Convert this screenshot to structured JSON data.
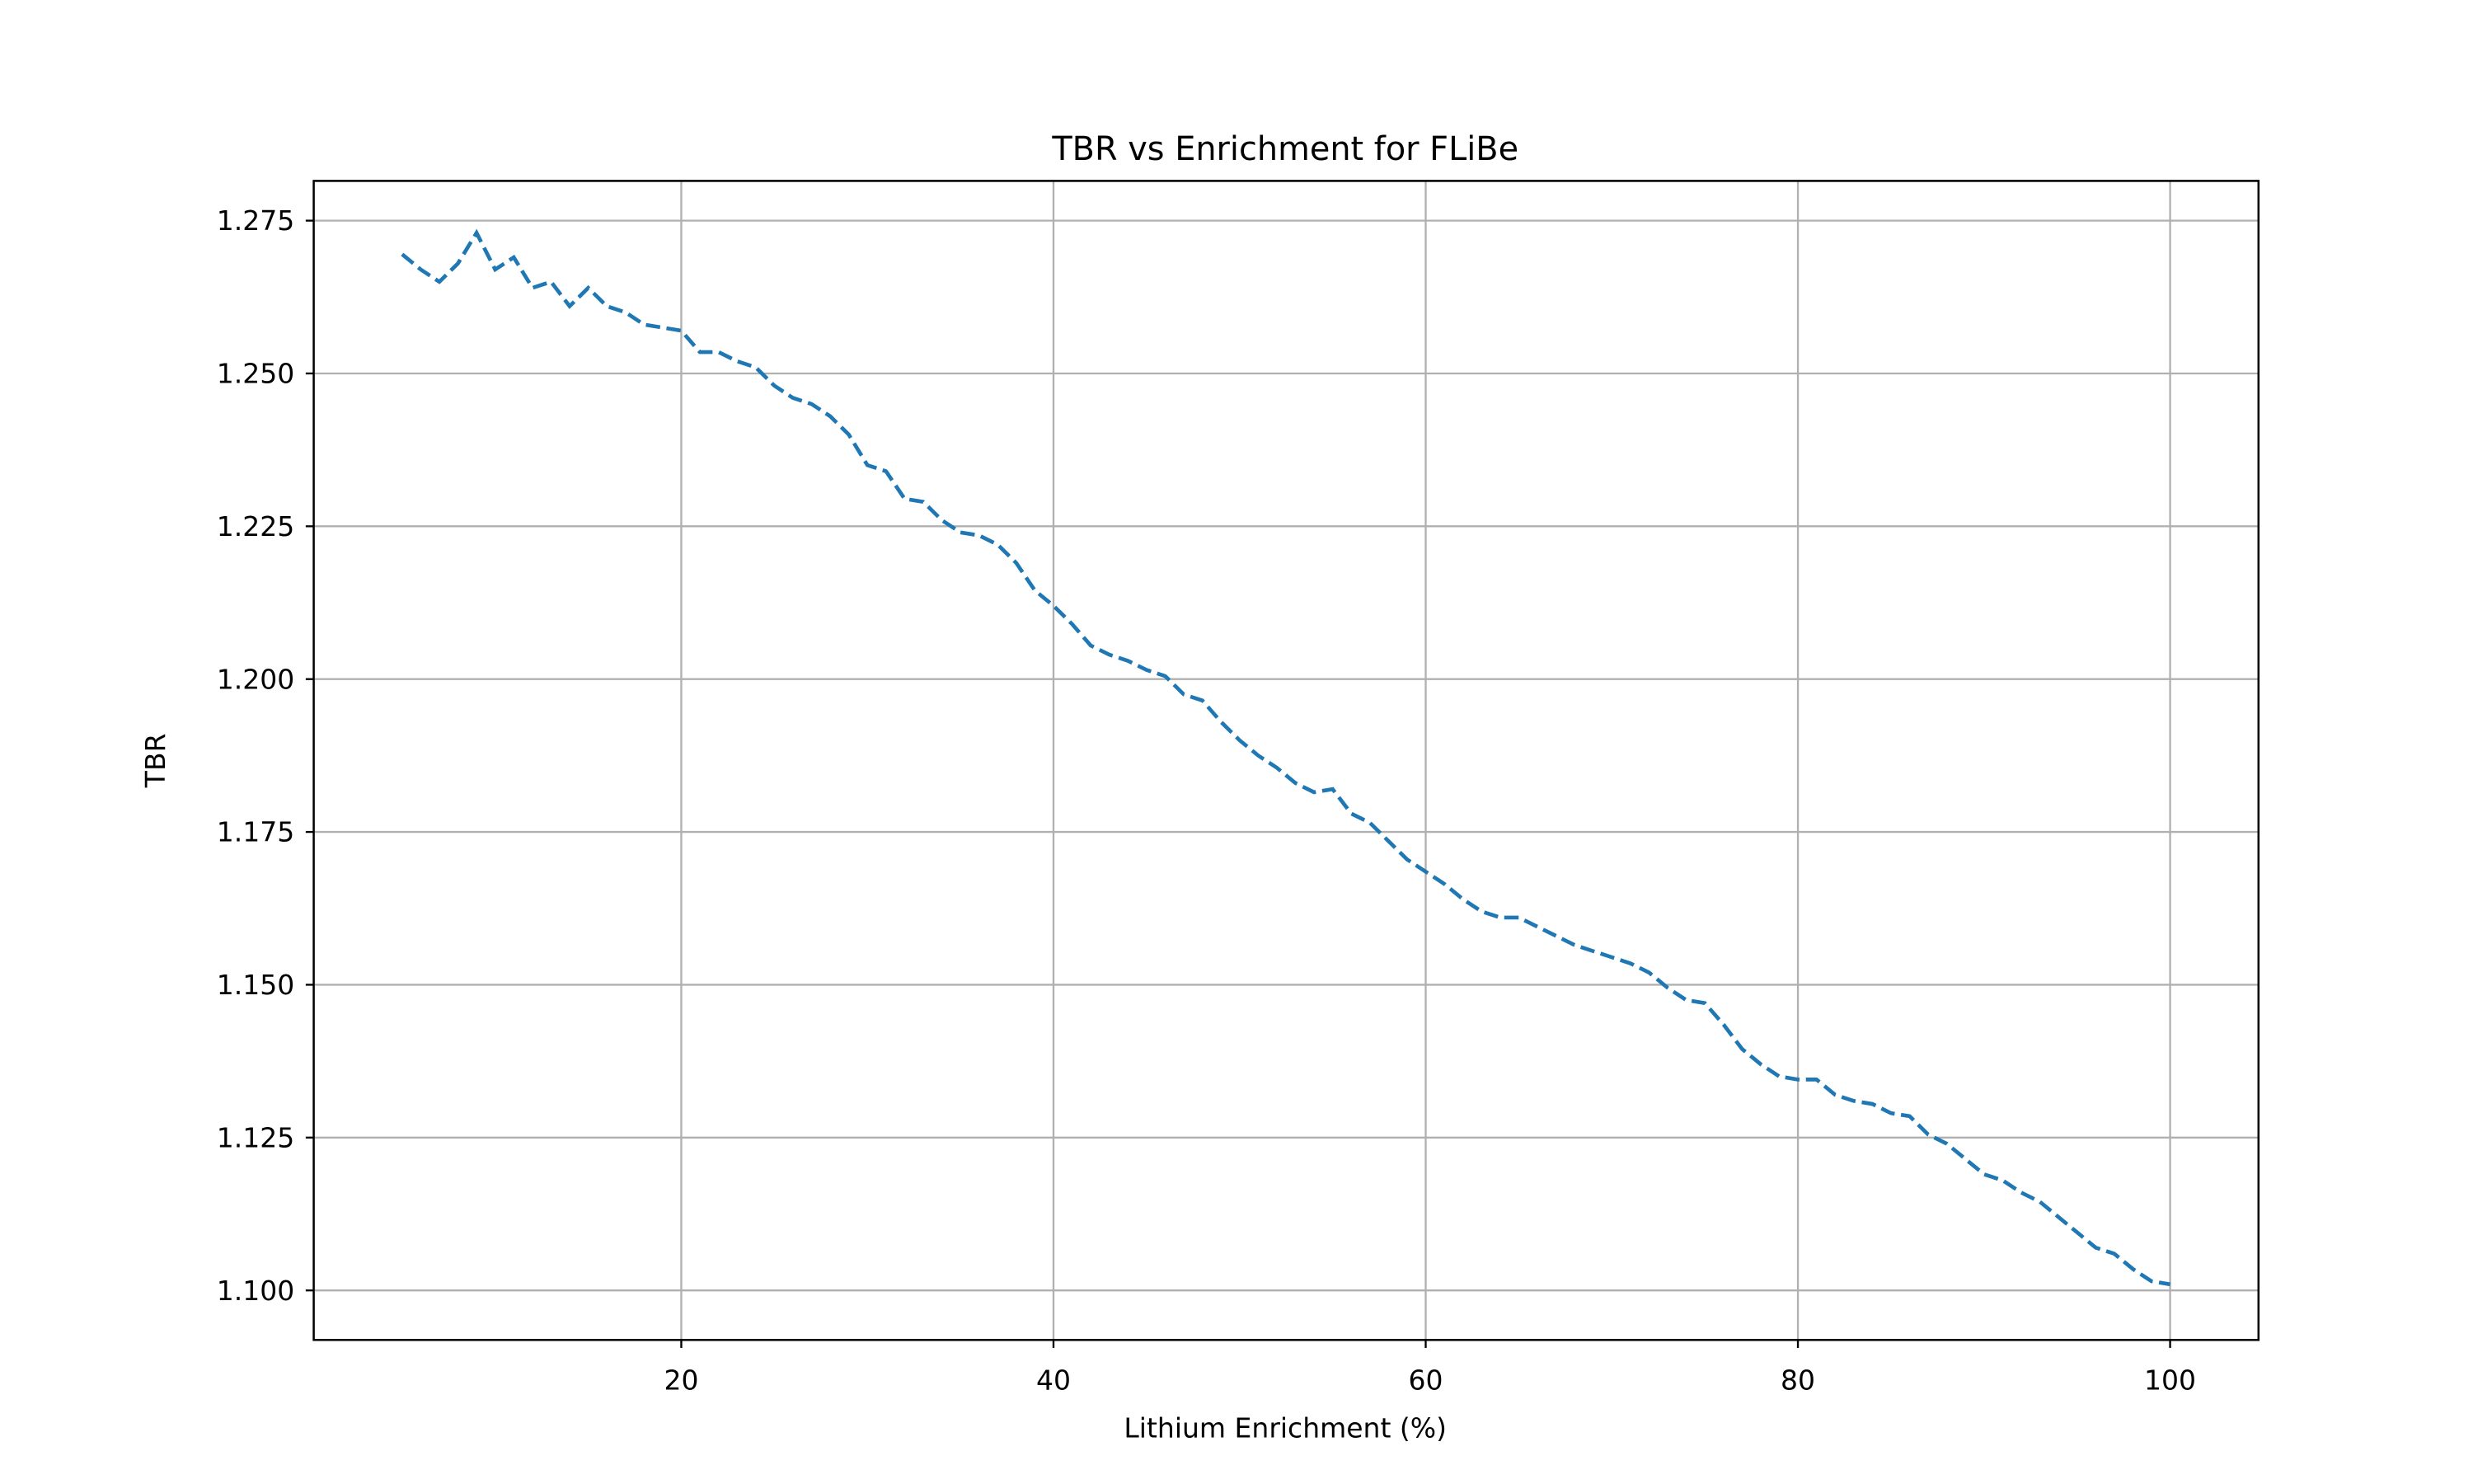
{
  "chart_data": {
    "type": "line",
    "title": "TBR vs Enrichment for FLiBe",
    "x_label": "Lithium Enrichment (%)",
    "y_label": "TBR",
    "x": [
      5,
      6,
      7,
      8,
      9,
      10,
      11,
      12,
      13,
      14,
      15,
      16,
      17,
      18,
      19,
      20,
      21,
      22,
      23,
      24,
      25,
      26,
      27,
      28,
      29,
      30,
      31,
      32,
      33,
      34,
      35,
      36,
      37,
      38,
      39,
      40,
      41,
      42,
      43,
      44,
      45,
      46,
      47,
      48,
      49,
      50,
      51,
      52,
      53,
      54,
      55,
      56,
      57,
      58,
      59,
      60,
      61,
      62,
      63,
      64,
      65,
      66,
      67,
      68,
      69,
      70,
      71,
      72,
      73,
      74,
      75,
      76,
      77,
      78,
      79,
      80,
      81,
      82,
      83,
      84,
      85,
      86,
      87,
      88,
      89,
      90,
      91,
      92,
      93,
      94,
      95,
      96,
      97,
      98,
      99,
      100
    ],
    "series": [
      {
        "color": "#1f77b4",
        "values": [
          1.2695,
          1.267,
          1.265,
          1.268,
          1.273,
          1.267,
          1.269,
          1.264,
          1.265,
          1.261,
          1.264,
          1.261,
          1.26,
          1.258,
          1.2575,
          1.257,
          1.2535,
          1.2535,
          1.252,
          1.251,
          1.248,
          1.246,
          1.245,
          1.243,
          1.24,
          1.235,
          1.234,
          1.2295,
          1.229,
          1.226,
          1.224,
          1.2235,
          1.222,
          1.219,
          1.2145,
          1.212,
          1.209,
          1.2055,
          1.204,
          1.203,
          1.2015,
          1.2005,
          1.1975,
          1.1965,
          1.193,
          1.19,
          1.1875,
          1.1855,
          1.183,
          1.1815,
          1.182,
          1.178,
          1.1765,
          1.1735,
          1.1705,
          1.1685,
          1.1665,
          1.164,
          1.162,
          1.161,
          1.161,
          1.1595,
          1.158,
          1.1565,
          1.1555,
          1.1545,
          1.1535,
          1.152,
          1.1495,
          1.1475,
          1.147,
          1.1435,
          1.1395,
          1.137,
          1.135,
          1.1345,
          1.1345,
          1.132,
          1.131,
          1.1305,
          1.129,
          1.1285,
          1.1255,
          1.124,
          1.1215,
          1.119,
          1.118,
          1.116,
          1.1145,
          1.112,
          1.1095,
          1.107,
          1.106,
          1.1035,
          1.1015,
          1.101
        ]
      }
    ],
    "xlim": [
      0.25,
      104.75
    ],
    "ylim": [
      1.0919,
      1.2815
    ],
    "xticks": [
      20,
      40,
      60,
      80,
      100
    ],
    "yticks": [
      {
        "value": 1.1,
        "label": "1.100"
      },
      1.125,
      {
        "value": 1.15,
        "label": "1.150"
      },
      1.175,
      {
        "value": 1.2,
        "label": "1.200"
      },
      1.225,
      {
        "value": 1.25,
        "label": "1.250"
      },
      1.275
    ],
    "grid": true,
    "line_style": "dashed"
  }
}
